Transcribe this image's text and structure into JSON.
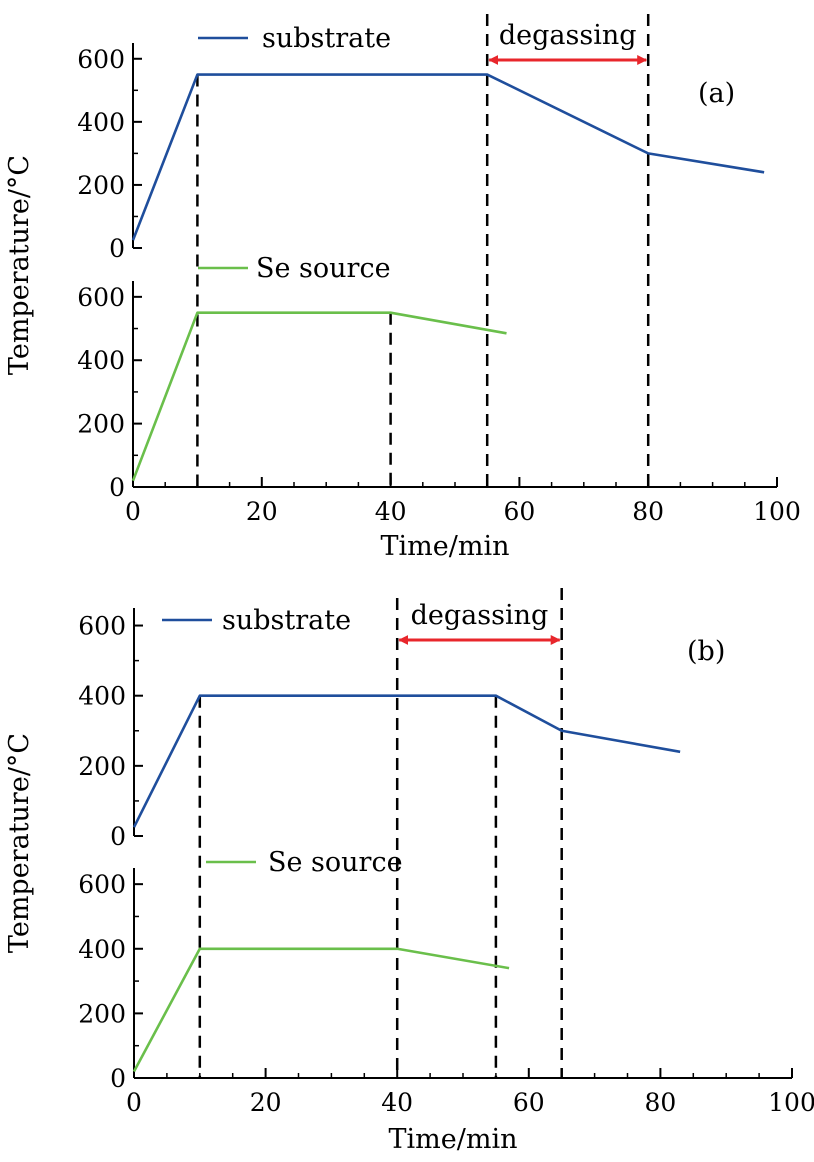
{
  "colors": {
    "substrate": "#1f4e9c",
    "se_source": "#6abf4b",
    "degassing_arrow": "#e8262b",
    "axes": "#000000"
  },
  "chart_data": [
    {
      "type": "line",
      "panel": "(a)",
      "xlabel": "Time/min",
      "ylabel": "Temperature/°C",
      "xlim": [
        0,
        100
      ],
      "xticks": [
        "0",
        "20",
        "40",
        "60",
        "80",
        "100"
      ],
      "subplots": [
        {
          "ylim": [
            0,
            650
          ],
          "yticks": [
            "0",
            "200",
            "400",
            "600"
          ],
          "series": [
            {
              "name": "substrate",
              "color": "#1f4e9c",
              "x": [
                0,
                10,
                55,
                80,
                98
              ],
              "y": [
                25,
                550,
                550,
                300,
                240
              ]
            }
          ]
        },
        {
          "ylim": [
            0,
            650
          ],
          "yticks": [
            "0",
            "200",
            "400",
            "600"
          ],
          "series": [
            {
              "name": "Se source",
              "color": "#6abf4b",
              "x": [
                0,
                10,
                40,
                58
              ],
              "y": [
                20,
                550,
                550,
                485
              ]
            }
          ]
        }
      ],
      "vlines": [
        10,
        40,
        55,
        80
      ],
      "vline_spans": [
        {
          "x": 10,
          "from": "bottom",
          "to": "top"
        },
        {
          "x": 40,
          "from": "bottom",
          "to": "bottom-data"
        },
        {
          "x": 55,
          "from": "bottom",
          "to": "top-edge"
        },
        {
          "x": 80,
          "from": "bottom",
          "to": "top-edge"
        }
      ],
      "annotation": {
        "label": "degassing",
        "x_start": 55,
        "x_end": 80
      }
    },
    {
      "type": "line",
      "panel": "(b)",
      "xlabel": "Time/min",
      "ylabel": "Temperature/°C",
      "xlim": [
        0,
        100
      ],
      "xticks": [
        "0",
        "20",
        "40",
        "60",
        "80",
        "100"
      ],
      "subplots": [
        {
          "ylim": [
            0,
            650
          ],
          "yticks": [
            "0",
            "200",
            "400",
            "600"
          ],
          "series": [
            {
              "name": "substrate",
              "color": "#1f4e9c",
              "x": [
                0,
                10,
                55,
                65,
                83
              ],
              "y": [
                25,
                400,
                400,
                300,
                240
              ]
            }
          ]
        },
        {
          "ylim": [
            0,
            650
          ],
          "yticks": [
            "0",
            "200",
            "400",
            "600"
          ],
          "series": [
            {
              "name": "Se source",
              "color": "#6abf4b",
              "x": [
                0,
                10,
                40,
                57
              ],
              "y": [
                20,
                400,
                400,
                340
              ]
            }
          ]
        }
      ],
      "vlines": [
        10,
        40,
        55,
        65
      ],
      "annotation": {
        "label": "degassing",
        "x_start": 40,
        "x_end": 65
      }
    }
  ]
}
